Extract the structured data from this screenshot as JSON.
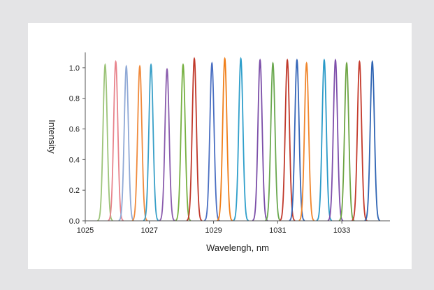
{
  "chart_data": {
    "type": "line",
    "title": "",
    "xlabel": "Wavelengh, nm",
    "ylabel": "Intensity",
    "xlim": [
      1025,
      1034.5
    ],
    "ylim": [
      0,
      1.1
    ],
    "x_ticks": [
      1025,
      1027,
      1029,
      1031,
      1033
    ],
    "x_tick_labels": [
      "1025",
      "1027",
      "1029",
      "1031",
      "1033"
    ],
    "y_ticks": [
      0,
      0.2,
      0.4,
      0.6,
      0.8,
      1.0
    ],
    "y_tick_labels": [
      "0.0",
      "0.2",
      "0.4",
      "0.6",
      "0.8",
      "1.0"
    ],
    "grid": false,
    "legend": "none",
    "series": [
      {
        "center": 1025.62,
        "peak": 1.02,
        "color": "#9dc47a"
      },
      {
        "center": 1025.95,
        "peak": 1.04,
        "color": "#e8838c"
      },
      {
        "center": 1026.28,
        "peak": 1.01,
        "color": "#8fa9d6"
      },
      {
        "center": 1026.7,
        "peak": 1.01,
        "color": "#f08a3c"
      },
      {
        "center": 1027.05,
        "peak": 1.02,
        "color": "#3aa0c8"
      },
      {
        "center": 1027.55,
        "peak": 0.99,
        "color": "#8a5cad"
      },
      {
        "center": 1028.05,
        "peak": 1.02,
        "color": "#76b041"
      },
      {
        "center": 1028.4,
        "peak": 1.06,
        "color": "#c0392b"
      },
      {
        "center": 1028.95,
        "peak": 1.03,
        "color": "#4a6fc2"
      },
      {
        "center": 1029.35,
        "peak": 1.06,
        "color": "#f07f1a"
      },
      {
        "center": 1029.85,
        "peak": 1.06,
        "color": "#2f9fcb"
      },
      {
        "center": 1030.45,
        "peak": 1.05,
        "color": "#7b4ea8"
      },
      {
        "center": 1030.85,
        "peak": 1.03,
        "color": "#6aa84f"
      },
      {
        "center": 1031.3,
        "peak": 1.05,
        "color": "#c0392b"
      },
      {
        "center": 1031.6,
        "peak": 1.05,
        "color": "#3566b8"
      },
      {
        "center": 1031.9,
        "peak": 1.03,
        "color": "#f0862c"
      },
      {
        "center": 1032.45,
        "peak": 1.05,
        "color": "#2a9ac8"
      },
      {
        "center": 1032.8,
        "peak": 1.05,
        "color": "#7e4fab"
      },
      {
        "center": 1033.15,
        "peak": 1.03,
        "color": "#6ea544"
      },
      {
        "center": 1033.55,
        "peak": 1.04,
        "color": "#c43a2c"
      },
      {
        "center": 1033.95,
        "peak": 1.04,
        "color": "#2f64b3"
      }
    ]
  }
}
